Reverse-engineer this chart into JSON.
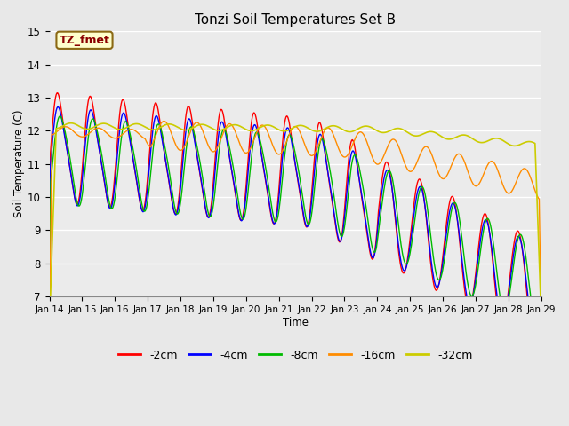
{
  "title": "Tonzi Soil Temperatures Set B",
  "xlabel": "Time",
  "ylabel": "Soil Temperature (C)",
  "ylim": [
    7.0,
    15.0
  ],
  "yticks": [
    7.0,
    8.0,
    9.0,
    10.0,
    11.0,
    12.0,
    13.0,
    14.0,
    15.0
  ],
  "xtick_labels": [
    "Jan 14",
    "Jan 15",
    "Jan 16",
    "Jan 17",
    "Jan 18",
    "Jan 19",
    "Jan 20",
    "Jan 21",
    "Jan 22",
    "Jan 23",
    "Jan 24",
    "Jan 25",
    "Jan 26",
    "Jan 27",
    "Jan 28",
    "Jan 29"
  ],
  "annotation_text": "TZ_fmet",
  "annotation_color": "#8B0000",
  "annotation_bg": "#FFFFCC",
  "line_colors": {
    "-2cm": "#FF0000",
    "-4cm": "#0000FF",
    "-8cm": "#00BB00",
    "-16cm": "#FF8C00",
    "-32cm": "#CCCC00"
  },
  "legend_labels": [
    "-2cm",
    "-4cm",
    "-8cm",
    "-16cm",
    "-32cm"
  ],
  "bg_color": "#E8E8E8",
  "plot_bg": "#EBEBEB",
  "figwidth": 6.4,
  "figheight": 4.8,
  "dpi": 100
}
